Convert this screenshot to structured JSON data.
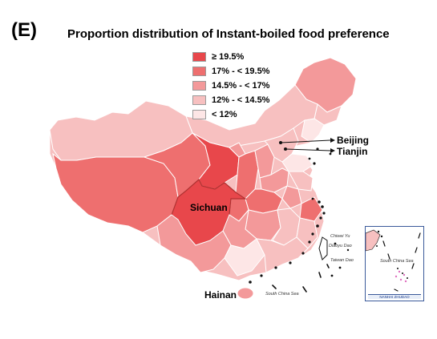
{
  "figure": {
    "panel_label": "(E)",
    "title": "Proportion distribution of Instant-boiled food preference"
  },
  "legend": {
    "items": [
      {
        "label": "≥ 19.5%",
        "color": "#e8474b"
      },
      {
        "label": "17% - < 19.5%",
        "color": "#ee6f6f"
      },
      {
        "label": "14.5% - < 17%",
        "color": "#f3999a"
      },
      {
        "label": "12% - < 14.5%",
        "color": "#f7c0c0"
      },
      {
        "label": "< 12%",
        "color": "#fde6e6"
      }
    ]
  },
  "labels": {
    "sichuan": "Sichuan",
    "beijing": "Beijing",
    "tianjin": "Tianjin",
    "hainan": "Hainan",
    "south_china_sea": "South China Sea",
    "chiwei_yu": "Chiwei Yu",
    "diaoyu_dao": "Diaoyu Dao",
    "taiwan_dao": "Taiwan Dao",
    "inset_sea": "South China Sea",
    "inset_caption": "NANHAI ZHUDAO"
  },
  "colors": {
    "border": "#ffffff",
    "sichuan_outline": "#b03030",
    "islands": "#111111"
  }
}
